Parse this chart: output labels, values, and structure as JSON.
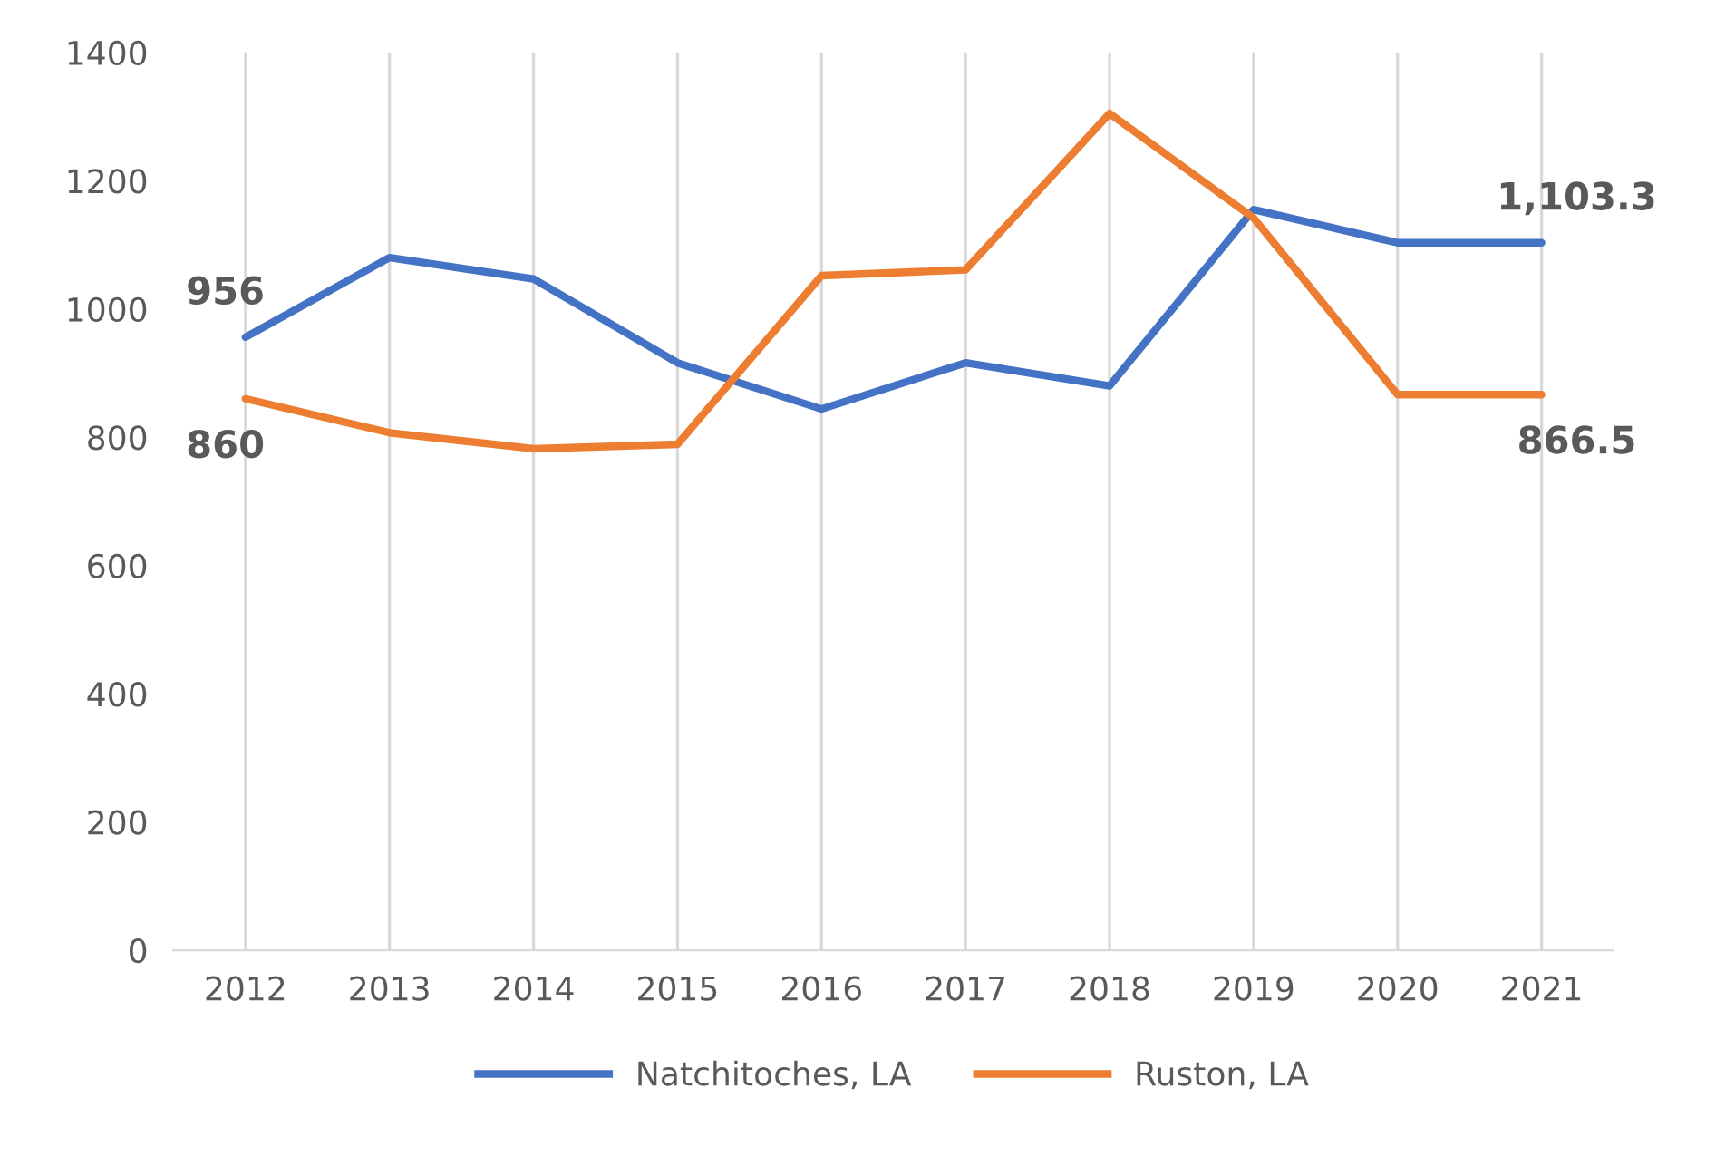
{
  "chart_data": {
    "type": "line",
    "categories": [
      "2012",
      "2013",
      "2014",
      "2015",
      "2016",
      "2017",
      "2018",
      "2019",
      "2020",
      "2021"
    ],
    "series": [
      {
        "name": "Natchitoches, LA",
        "color": "#4472c4",
        "values": [
          956,
          1080,
          1047,
          916,
          844,
          916,
          880,
          1155,
          1103.3,
          1103.3
        ],
        "value_labels": [
          "956",
          null,
          null,
          null,
          null,
          null,
          null,
          null,
          null,
          "1,103.3"
        ]
      },
      {
        "name": "Ruston, LA",
        "color": "#ed7d31",
        "values": [
          860,
          807,
          782,
          789,
          1052,
          1061,
          1305,
          1142,
          866.5,
          866.5
        ],
        "value_labels": [
          "860",
          null,
          null,
          null,
          null,
          null,
          null,
          null,
          null,
          "866.5"
        ]
      }
    ],
    "ylim": [
      0,
      1400
    ],
    "yticks": [
      0,
      200,
      400,
      600,
      800,
      1000,
      1200,
      1400
    ],
    "grid": "x",
    "legend": "bottom",
    "marker": "none",
    "line_style": "solid"
  }
}
